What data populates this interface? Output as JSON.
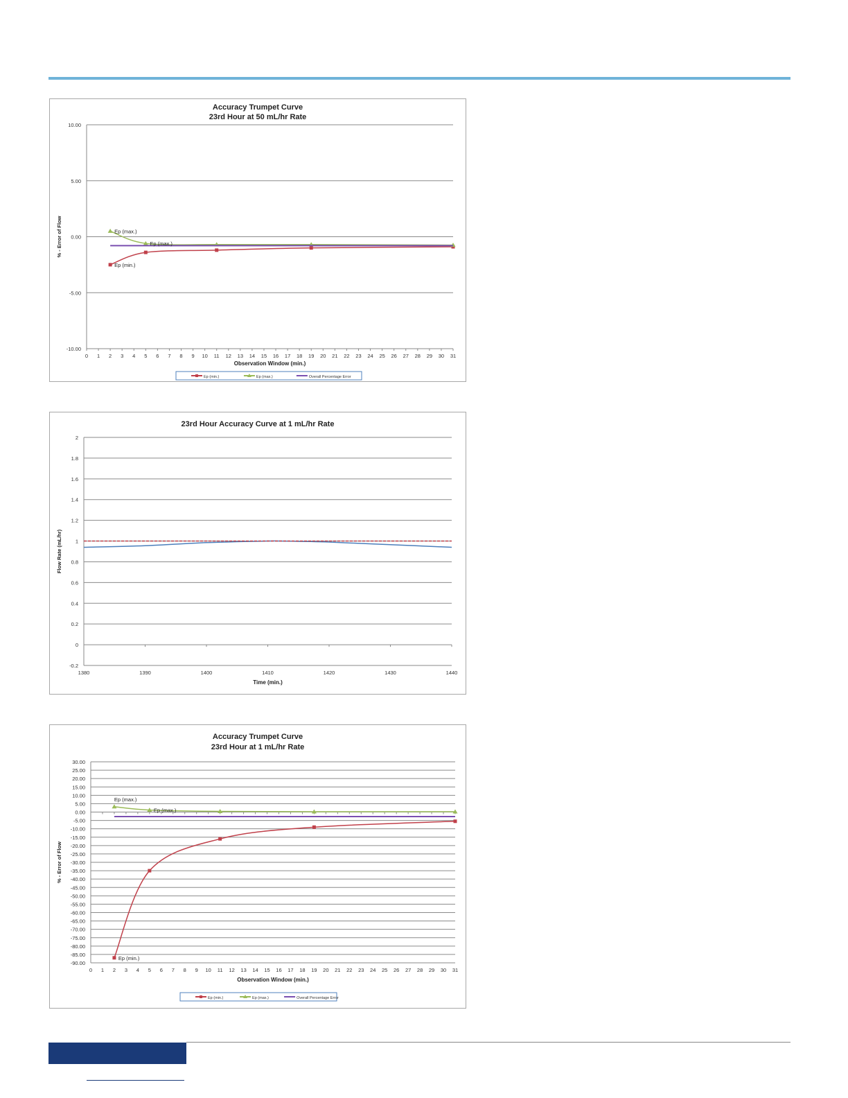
{
  "colors": {
    "header_rule": "#6fb3d9",
    "footer_block": "#1a3a78",
    "ep_min": "#c0404a",
    "ep_max": "#9bbb59",
    "overall": "#7a4fb0",
    "flow": "#4a7ebb",
    "target": "#c0404a"
  },
  "chart_data": [
    {
      "type": "line",
      "title": "Accuracy Trumpet Curve",
      "subtitle": "23rd Hour at 50 mL/hr Rate",
      "xlabel": "Observation Window (min.)",
      "ylabel": "% - Error of Flow",
      "xlim": [
        0,
        31
      ],
      "ylim": [
        -10,
        10
      ],
      "yticks": [
        "10.00",
        "5.00",
        "0.00",
        "-5.00",
        "-10.00"
      ],
      "ytick_values": [
        10,
        5,
        0,
        -5,
        -10
      ],
      "xticks": [
        "0",
        "1",
        "2",
        "3",
        "4",
        "5",
        "6",
        "7",
        "8",
        "9",
        "10",
        "11",
        "12",
        "13",
        "14",
        "15",
        "16",
        "17",
        "18",
        "19",
        "20",
        "21",
        "22",
        "23",
        "24",
        "25",
        "26",
        "27",
        "28",
        "29",
        "30",
        "31"
      ],
      "grid": true,
      "legend_position": "bottom",
      "series": [
        {
          "name": "Ep (min.)",
          "color": "#c0404a",
          "marker": "square",
          "x": [
            2,
            5,
            11,
            19,
            31
          ],
          "y": [
            -2.5,
            -1.4,
            -1.2,
            -1.0,
            -0.9
          ]
        },
        {
          "name": "Ep (max.)",
          "color": "#9bbb59",
          "marker": "triangle",
          "x": [
            2,
            5,
            11,
            19,
            31
          ],
          "y": [
            0.5,
            -0.6,
            -0.7,
            -0.7,
            -0.75
          ]
        },
        {
          "name": "Overall Percentage Error",
          "color": "#7a4fb0",
          "marker": "none",
          "x": [
            2,
            31
          ],
          "y": [
            -0.8,
            -0.8
          ]
        }
      ],
      "annotations": [
        {
          "text": "Ep (max.)",
          "x": 2,
          "y": 0.5
        },
        {
          "text": "Ep (max.)",
          "x": 5,
          "y": -0.6
        },
        {
          "text": "Ep (min.)",
          "x": 2,
          "y": -2.5
        }
      ]
    },
    {
      "type": "line",
      "title": "23rd Hour Accuracy Curve at 1 mL/hr Rate",
      "xlabel": "Time (min.)",
      "ylabel": "Flow Rate (mL/hr)",
      "xlim": [
        1380,
        1440
      ],
      "ylim": [
        -0.2,
        2
      ],
      "yticks": [
        "2",
        "1.8",
        "1.6",
        "1.4",
        "1.2",
        "1",
        "0.8",
        "0.6",
        "0.4",
        "0.2",
        "0",
        "-0.2"
      ],
      "ytick_values": [
        2,
        1.8,
        1.6,
        1.4,
        1.2,
        1,
        0.8,
        0.6,
        0.4,
        0.2,
        0,
        -0.2
      ],
      "xticks": [
        "1380",
        "1390",
        "1400",
        "1410",
        "1420",
        "1430",
        "1440"
      ],
      "grid": true,
      "series": [
        {
          "color": "#4a7ebb",
          "marker": "none",
          "x": [
            1380,
            1390,
            1400,
            1410,
            1412,
            1420,
            1430,
            1440
          ],
          "y": [
            0.94,
            0.955,
            0.985,
            1.0,
            1.0,
            0.99,
            0.965,
            0.94
          ]
        },
        {
          "color": "#c0404a",
          "marker": "none",
          "dashed": true,
          "x": [
            1380,
            1440
          ],
          "y": [
            1,
            1
          ]
        }
      ]
    },
    {
      "type": "line",
      "title": "Accuracy Trumpet Curve",
      "subtitle": "23rd Hour at 1 mL/hr Rate",
      "xlabel": "Observation Window (min.)",
      "ylabel": "% - Error of Flow",
      "xlim": [
        0,
        31
      ],
      "ylim": [
        -90,
        30
      ],
      "yticks": [
        "30.00",
        "25.00",
        "20.00",
        "15.00",
        "10.00",
        "5.00",
        "0.00",
        "-5.00",
        "-10.00",
        "-15.00",
        "-20.00",
        "-25.00",
        "-30.00",
        "-35.00",
        "-40.00",
        "-45.00",
        "-50.00",
        "-55.00",
        "-60.00",
        "-65.00",
        "-70.00",
        "-75.00",
        "-80.00",
        "-85.00",
        "-90.00"
      ],
      "ytick_values": [
        30,
        25,
        20,
        15,
        10,
        5,
        0,
        -5,
        -10,
        -15,
        -20,
        -25,
        -30,
        -35,
        -40,
        -45,
        -50,
        -55,
        -60,
        -65,
        -70,
        -75,
        -80,
        -85,
        -90
      ],
      "xticks": [
        "0",
        "1",
        "2",
        "3",
        "4",
        "5",
        "6",
        "7",
        "8",
        "9",
        "10",
        "11",
        "12",
        "13",
        "14",
        "15",
        "16",
        "17",
        "18",
        "19",
        "20",
        "21",
        "22",
        "23",
        "24",
        "25",
        "26",
        "27",
        "28",
        "29",
        "30",
        "31"
      ],
      "grid": true,
      "legend_position": "bottom",
      "series": [
        {
          "name": "Ep (min.)",
          "color": "#c0404a",
          "marker": "square",
          "x": [
            2,
            5,
            11,
            19,
            31
          ],
          "y": [
            -87,
            -35,
            -16,
            -9,
            -5.5
          ]
        },
        {
          "name": "Ep (max.)",
          "color": "#9bbb59",
          "marker": "triangle",
          "x": [
            2,
            5,
            11,
            19,
            31
          ],
          "y": [
            3.2,
            1.2,
            0.4,
            0.2,
            0.2
          ]
        },
        {
          "name": "Overall Percentage Error",
          "color": "#7a4fb0",
          "marker": "none",
          "x": [
            2,
            31
          ],
          "y": [
            -2.7,
            -2.7
          ]
        }
      ],
      "annotations": [
        {
          "text": "Ep (max.)",
          "x": 2,
          "y": 3.2
        },
        {
          "text": "Ep (max.)",
          "x": 5,
          "y": 1.2
        },
        {
          "text": "Ep (min.)",
          "x": 2,
          "y": -87
        }
      ]
    }
  ]
}
